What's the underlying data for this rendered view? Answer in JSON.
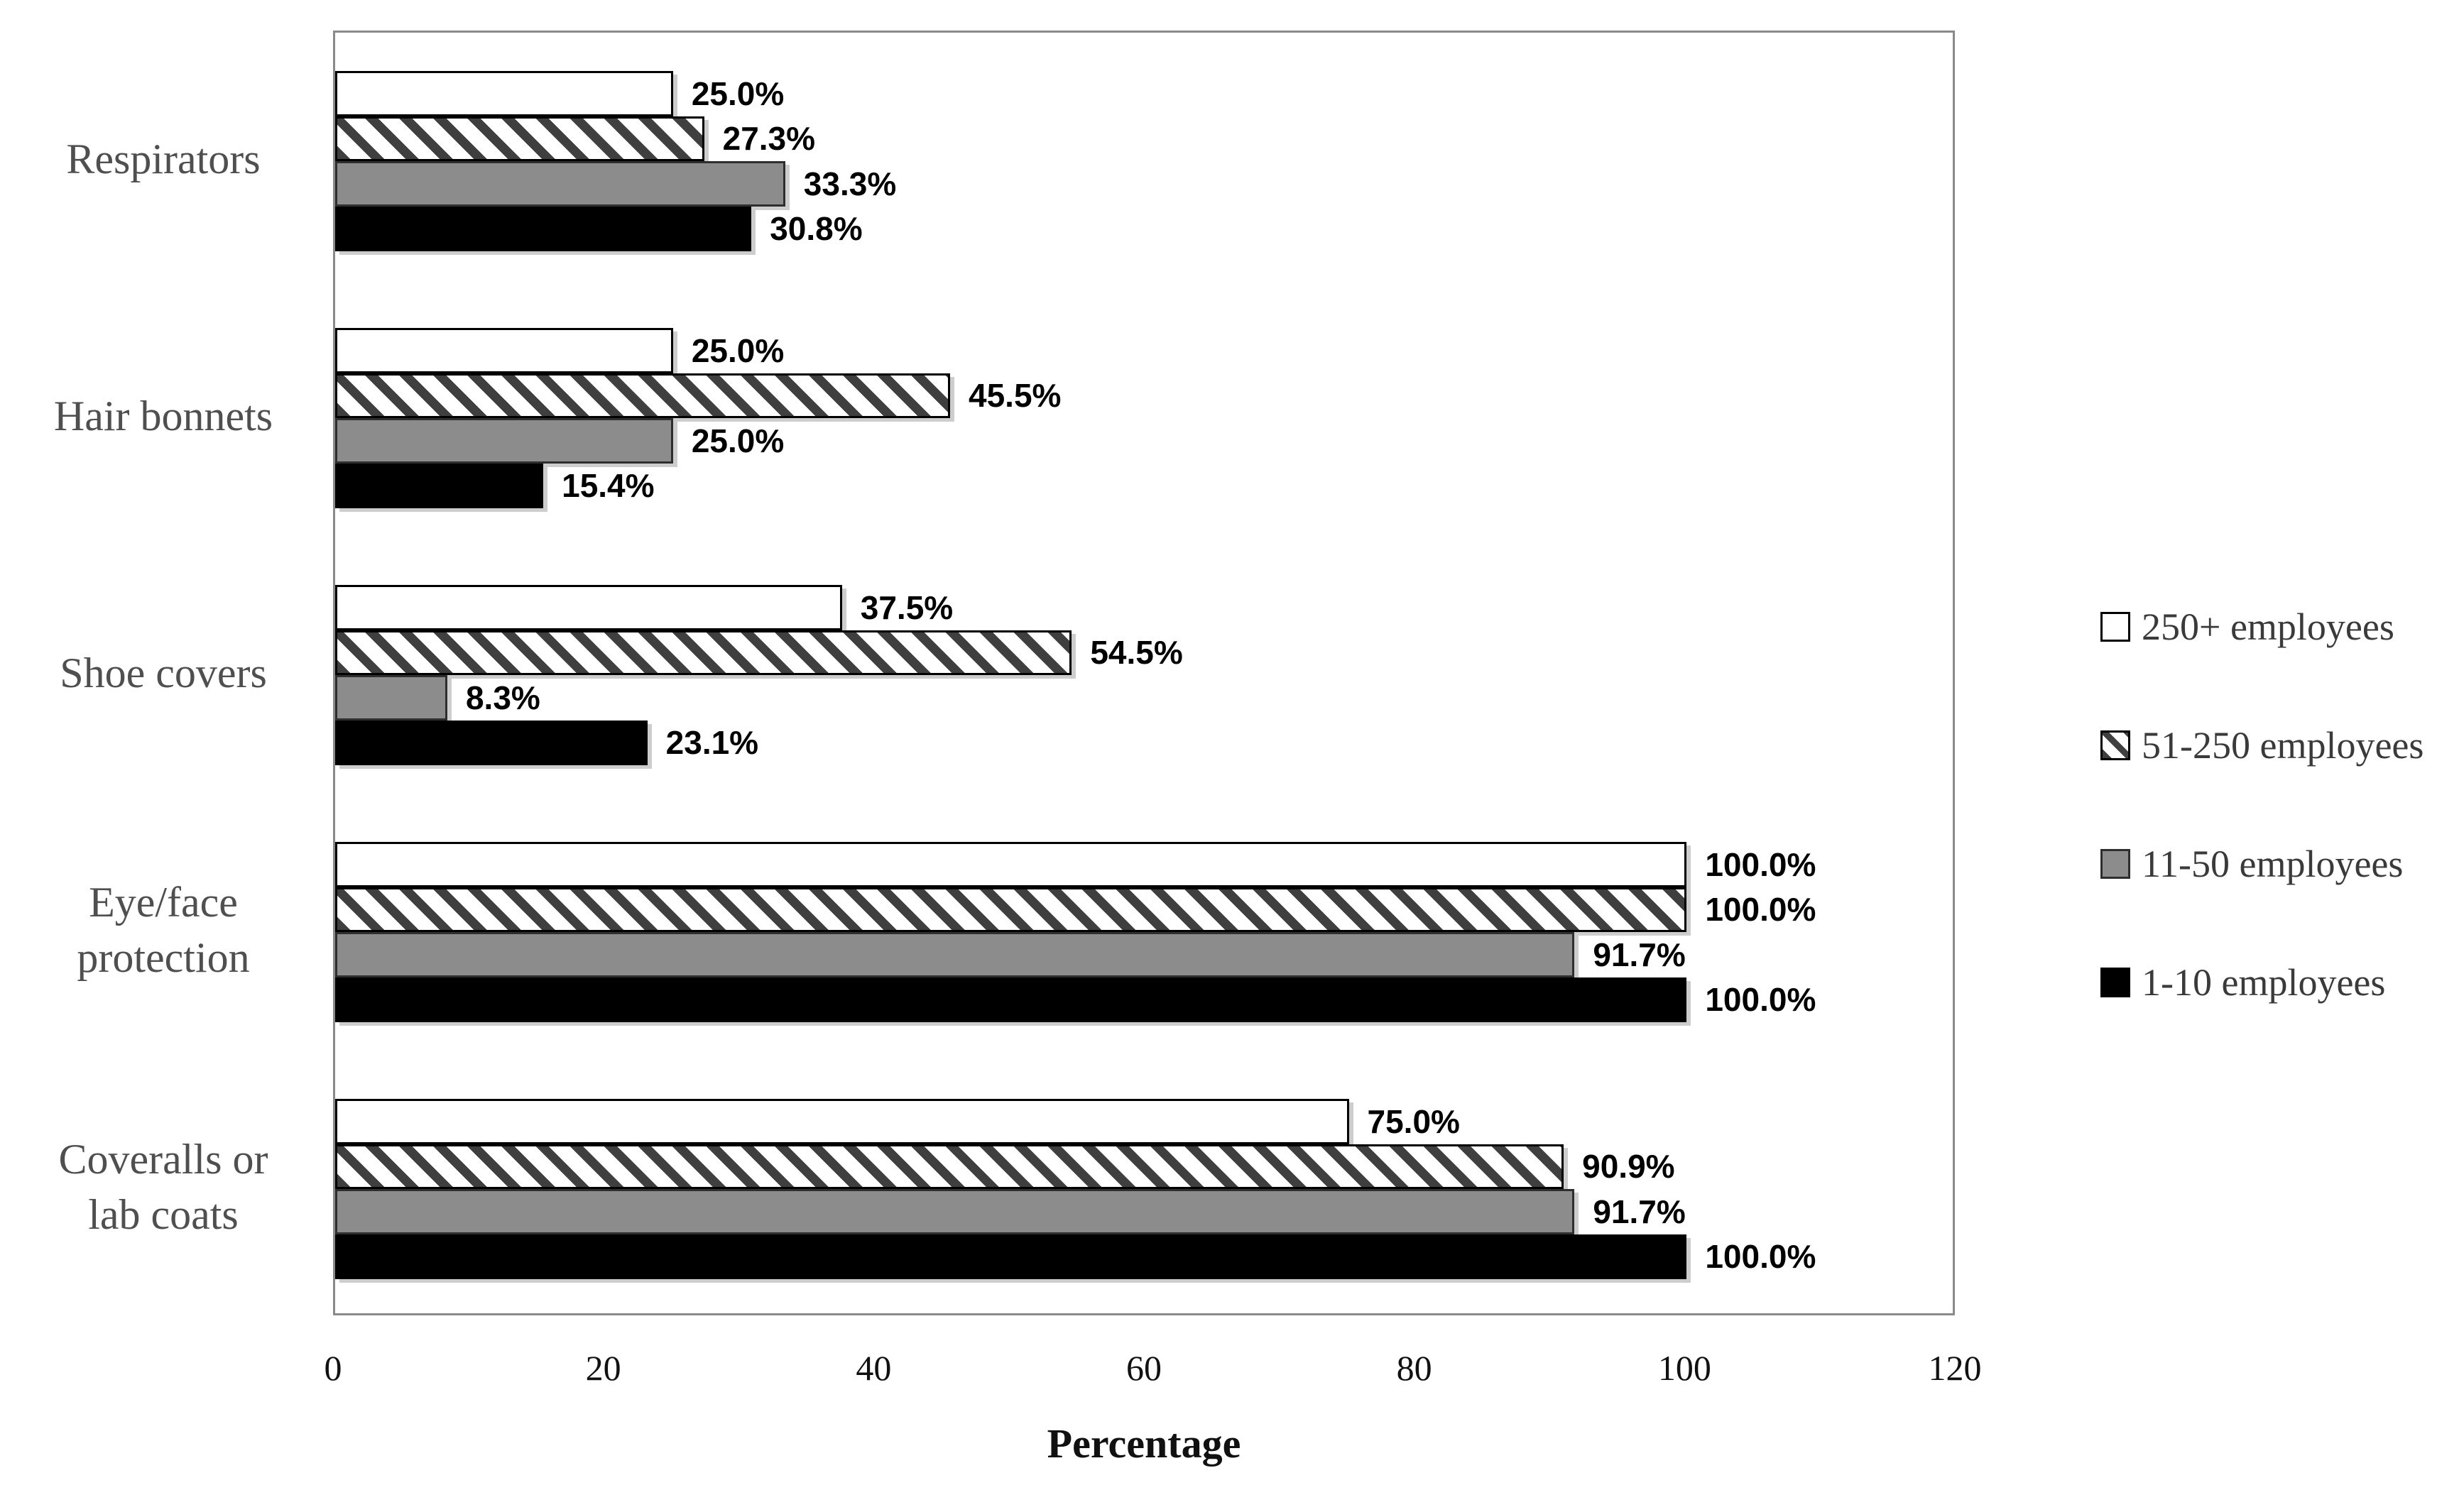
{
  "chart_data": {
    "type": "bar",
    "orientation": "horizontal",
    "xlabel": "Percentage",
    "xlim": [
      0,
      120
    ],
    "x_ticks": [
      0,
      20,
      40,
      60,
      80,
      100,
      120
    ],
    "grid": false,
    "legend_position": "right",
    "categories": [
      "Respirators",
      "Hair bonnets",
      "Shoe covers",
      "Eye/face protection",
      "Coveralls or lab coats"
    ],
    "categories_display": [
      "Respirators",
      "Hair bonnets",
      "Shoe covers",
      "Eye/face\nprotection",
      "Coveralls or\nlab coats"
    ],
    "series": [
      {
        "name": "250+ employees",
        "pattern": "white",
        "values": [
          25.0,
          25.0,
          37.5,
          100.0,
          75.0
        ],
        "labels": [
          "25.0%",
          "25.0%",
          "37.5%",
          "100.0%",
          "75.0%"
        ]
      },
      {
        "name": "51-250 employees",
        "pattern": "hatch",
        "values": [
          27.3,
          45.5,
          54.5,
          100.0,
          90.9
        ],
        "labels": [
          "27.3%",
          "45.5%",
          "54.5%",
          "100.0%",
          "90.9%"
        ]
      },
      {
        "name": "11-50 employees",
        "pattern": "gray",
        "values": [
          33.3,
          25.0,
          8.3,
          91.7,
          91.7
        ],
        "labels": [
          "33.3%",
          "25.0%",
          "8.3%",
          "91.7%",
          "91.7%"
        ]
      },
      {
        "name": "1-10 employees",
        "pattern": "black",
        "values": [
          30.8,
          15.4,
          23.1,
          100.0,
          100.0
        ],
        "labels": [
          "30.8%",
          "15.4%",
          "23.1%",
          "100.0%",
          "100.0%"
        ]
      }
    ],
    "colors": {
      "bar_gray": "#8C8C8C",
      "hatch_stripe": "#3F3F3F",
      "plot_border": "#8A8A8A",
      "category_text": "#4F4F4F",
      "legend_text": "#3A3A3A",
      "value_text": "#000000"
    }
  }
}
